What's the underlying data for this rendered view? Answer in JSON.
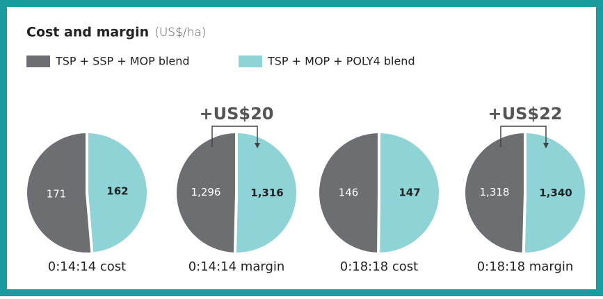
{
  "header": {
    "title": "Cost and margin",
    "unit": "(US$/ha)"
  },
  "legend": [
    {
      "name": "TSP + SSP + MOP blend",
      "color": "#6d6e71"
    },
    {
      "name": "TSP + MOP + POLY4 blend",
      "color": "#8ed4d7"
    }
  ],
  "chart_data": [
    {
      "type": "pie",
      "title": "0:14:14 cost",
      "values": [
        171,
        162
      ]
    },
    {
      "type": "pie",
      "title": "0:14:14 margin",
      "values": [
        1296,
        1316
      ],
      "value_labels": [
        "1,296",
        "1,316"
      ],
      "annotation": "+US$20"
    },
    {
      "type": "pie",
      "title": "0:18:18 cost",
      "values": [
        146,
        147
      ]
    },
    {
      "type": "pie",
      "title": "0:18:18 margin",
      "values": [
        1318,
        1340
      ],
      "value_labels": [
        "1,318",
        "1,340"
      ],
      "annotation": "+US$22"
    }
  ]
}
